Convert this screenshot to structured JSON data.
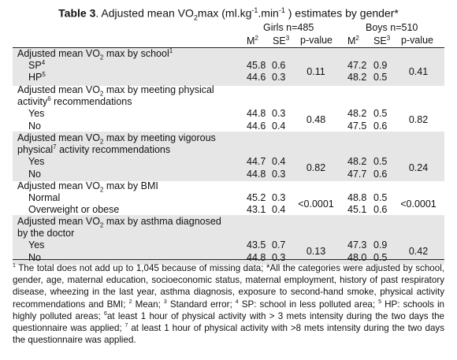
{
  "title": {
    "label": "Table 3",
    "text_pre": ". Adjusted mean VO",
    "sub2": "2",
    "text_mid": "max (ml.kg",
    "sup1": "-1",
    "text_mid2": ".min",
    "sup2": "-1",
    "text_post": " ) estimates by gender*"
  },
  "header": {
    "girls": "Girls n=485",
    "boys": "Boys n=510",
    "m": "M",
    "m_sup": "2",
    "se": "SE",
    "se_sup": "3",
    "p": "p-value"
  },
  "groups": [
    {
      "heading_lines": [
        {
          "pre": "Adjusted mean VO",
          "sub": "2",
          "post": " max by school",
          "sup": "1"
        }
      ],
      "rows": [
        {
          "label": "SP",
          "label_sup": "4",
          "g_m": "45.8",
          "g_se": "0.6",
          "b_m": "47.2",
          "b_se": "0.9"
        },
        {
          "label": "HP",
          "label_sup": "5",
          "g_m": "44.6",
          "g_se": "0.3",
          "b_m": "48.2",
          "b_se": "0.5"
        }
      ],
      "g_p": "0.11",
      "b_p": "0.41"
    },
    {
      "heading_lines": [
        {
          "pre": "Adjusted mean VO",
          "sub": "2",
          "post": " max by meeting physical"
        },
        {
          "pre": "activity",
          "sup": "6",
          "post": " recommendations"
        }
      ],
      "rows": [
        {
          "label": "Yes",
          "g_m": "44.8",
          "g_se": "0.3",
          "b_m": "48.2",
          "b_se": "0.5"
        },
        {
          "label": "No",
          "g_m": "44.6",
          "g_se": "0.4",
          "b_m": "47.5",
          "b_se": "0.6"
        }
      ],
      "g_p": "0.48",
      "b_p": "0.82"
    },
    {
      "heading_lines": [
        {
          "pre": "Adjusted mean VO",
          "sub": "2",
          "post": " max by meeting vigorous"
        },
        {
          "pre": "physical",
          "sup": "7",
          "post": " activity recommendations"
        }
      ],
      "rows": [
        {
          "label": "Yes",
          "g_m": "44.7",
          "g_se": "0.4",
          "b_m": "48.2",
          "b_se": "0.5"
        },
        {
          "label": "No",
          "g_m": "44.8",
          "g_se": "0.3",
          "b_m": "47.7",
          "b_se": "0.6"
        }
      ],
      "g_p": "0.82",
      "b_p": "0.24"
    },
    {
      "heading_lines": [
        {
          "pre": "Adjusted mean VO",
          "sub": "2",
          "post": " max by BMI"
        }
      ],
      "rows": [
        {
          "label": "Normal",
          "g_m": "45.2",
          "g_se": "0.3",
          "b_m": "48.8",
          "b_se": "0.5"
        },
        {
          "label": "Overweight or obese",
          "g_m": "43.1",
          "g_se": "0.4",
          "b_m": "45.1",
          "b_se": "0.6"
        }
      ],
      "g_p": "<0.0001",
      "b_p": "<0.0001"
    },
    {
      "heading_lines": [
        {
          "pre": "Adjusted mean VO",
          "sub": "2",
          "post": " max by asthma diagnosed"
        },
        {
          "pre": "by the doctor"
        }
      ],
      "rows": [
        {
          "label": "Yes",
          "g_m": "43.5",
          "g_se": "0.7",
          "b_m": "47.3",
          "b_se": "0.9"
        },
        {
          "label": "No",
          "g_m": "44.8",
          "g_se": "0.3",
          "b_m": "48.0",
          "b_se": "0.5"
        }
      ],
      "g_p": "0.13",
      "b_p": "0.42"
    }
  ],
  "footnote": [
    {
      "sup": "1",
      "text": " The total does not add up to 1,045 because of missing data; *All the categories were adjusted by school, gender, age, maternal education, socioeconomic status, maternal employment, history of past respiratory disease, wheezing in the last year, asthma diagnosis, exposure to second-hand smoke, physical activity recommendations and BMI; "
    },
    {
      "sup": "2",
      "text": " Mean; "
    },
    {
      "sup": "3",
      "text": " Standard error; "
    },
    {
      "sup": "4",
      "text": " SP: school in less polluted area; "
    },
    {
      "sup": "5",
      "text": " HP: schools in highly polluted areas; "
    },
    {
      "sup": "6",
      "text": "at least 1 hour of physical activity with > 3 mets intensity during the two days the questionnaire was applied; "
    },
    {
      "sup": "7",
      "text": " at least 1 hour of physical activity with >8 mets intensity during the two days the questionnaire was applied."
    }
  ]
}
